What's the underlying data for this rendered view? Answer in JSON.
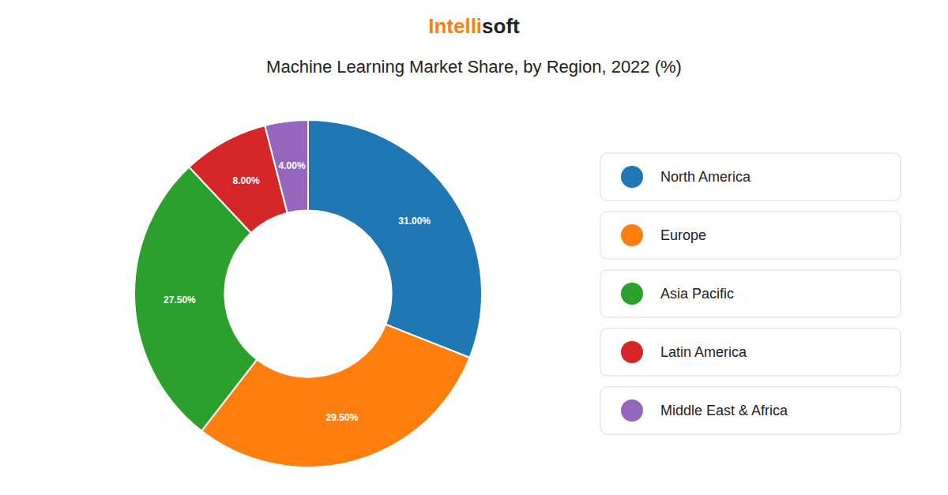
{
  "chart_data": {
    "type": "donut",
    "title": "Machine Learning Market Share, by Region, 2022 (%)",
    "annotations": [
      "Intelli",
      "soft"
    ],
    "categories": [
      "North America",
      "Europe",
      "Asia Pacific",
      "Latin America",
      "Middle East & Africa"
    ],
    "values": [
      31.0,
      29.5,
      27.5,
      8.0,
      4.0
    ],
    "value_labels": [
      "31.00%",
      "29.50%",
      "27.50%",
      "8.00%",
      "4.00%"
    ],
    "data_labels": true,
    "legend": "right"
  }
}
